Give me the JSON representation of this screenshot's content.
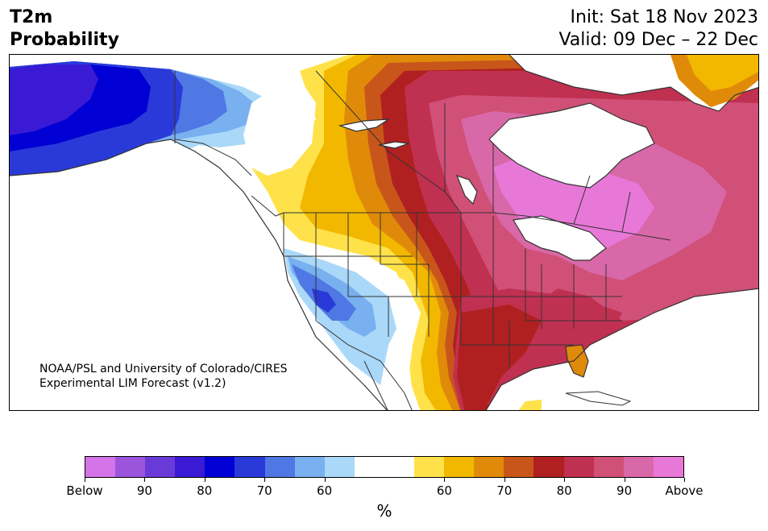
{
  "title": {
    "line1": "T2m",
    "line2": "Probability"
  },
  "init": "Init: Sat 18 Nov 2023",
  "valid": "Valid: 09 Dec – 22 Dec",
  "credit": {
    "line1": "NOAA/PSL and University of Colorado/CIRES",
    "line2": "Experimental LIM Forecast (v1.2)"
  },
  "colorbar": {
    "unit": "%",
    "colors": [
      "#d474e8",
      "#9b55dc",
      "#6a3ad8",
      "#3a1ad5",
      "#0000d5",
      "#2a3ad8",
      "#5078e4",
      "#78b0f0",
      "#aad8f8",
      "#ffffff",
      "#ffffff",
      "#ffe24a",
      "#f2b800",
      "#e08a0a",
      "#c8561a",
      "#b02020",
      "#c03050",
      "#d05078",
      "#d868a8",
      "#e878d8"
    ],
    "tick_labels": [
      "Below",
      "90",
      "80",
      "70",
      "60",
      "60",
      "70",
      "80",
      "90",
      "Above"
    ]
  },
  "colors": {
    "below_strong": "#0000d5",
    "above_strong": "#e878d8",
    "neutral": "#ffffff",
    "borders": "#333333"
  }
}
